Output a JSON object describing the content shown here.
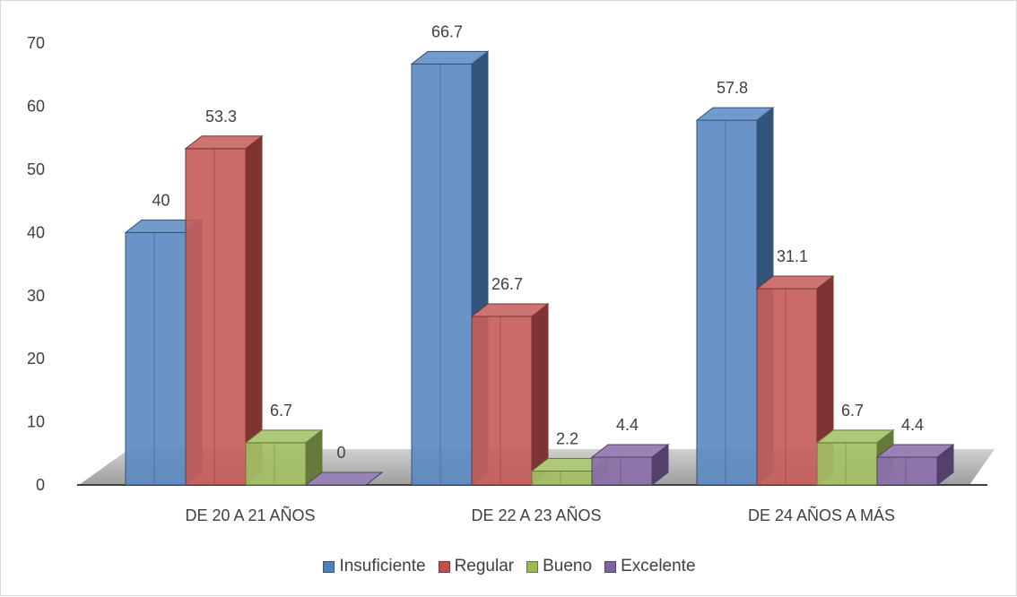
{
  "chart_data": {
    "type": "bar",
    "title": "",
    "xlabel": "",
    "ylabel": "",
    "ylim": [
      0,
      70
    ],
    "yticks": [
      0,
      10,
      20,
      30,
      40,
      50,
      60,
      70
    ],
    "categories": [
      "DE 20 A 21 AÑOS",
      "DE 22 A 23 AÑOS",
      "DE 24 AÑOS A MÁS"
    ],
    "series": [
      {
        "name": "Insuficiente",
        "values": [
          40,
          66.7,
          57.8
        ],
        "color": "#4f81bd"
      },
      {
        "name": "Regular",
        "values": [
          53.3,
          26.7,
          31.1
        ],
        "color": "#c0504d"
      },
      {
        "name": "Bueno",
        "values": [
          6.7,
          2.2,
          6.7
        ],
        "color": "#9bbb59"
      },
      {
        "name": "Excelente",
        "values": [
          0,
          4.4,
          4.4
        ],
        "color": "#8064a2"
      }
    ],
    "data_labels": [
      [
        "40",
        "66.7",
        "57.8"
      ],
      [
        "53.3",
        "26.7",
        "31.1"
      ],
      [
        "6.7",
        "2.2",
        "6.7"
      ],
      [
        "0",
        "4.4",
        "4.4"
      ]
    ],
    "grid": false,
    "style": "3d-column",
    "legend_position": "bottom"
  }
}
